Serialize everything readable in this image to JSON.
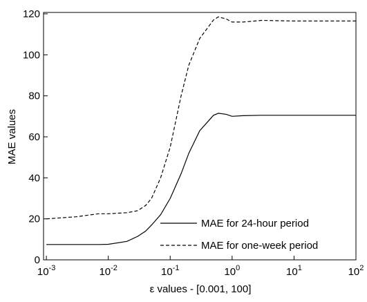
{
  "chart_data": {
    "type": "line",
    "xlabel": "ε values - [0.001, 100]",
    "ylabel": "MAE values",
    "xscale": "log",
    "x": [
      0.001,
      0.003,
      0.007,
      0.01,
      0.02,
      0.03,
      0.04,
      0.05,
      0.07,
      0.1,
      0.15,
      0.2,
      0.3,
      0.5,
      0.6,
      0.8,
      1,
      1.5,
      3,
      10,
      100
    ],
    "series": [
      {
        "name": "MAE for 24-hour period",
        "color": "#000000",
        "dash": "solid",
        "values": [
          7.5,
          7.5,
          7.5,
          7.6,
          9,
          11.5,
          14,
          17,
          22,
          30,
          42,
          52,
          63,
          70.5,
          71.5,
          71,
          70,
          70.3,
          70.5,
          70.5,
          70.5
        ]
      },
      {
        "name": "MAE for one-week period",
        "color": "#000000",
        "dash": "dashed",
        "values": [
          20,
          21,
          22.5,
          22.5,
          23,
          24,
          26.5,
          30,
          40,
          55,
          80,
          95,
          108,
          117,
          118.5,
          117.5,
          116,
          116,
          116.8,
          116.5,
          116.5
        ]
      }
    ],
    "xlim": [
      0.0009,
      100
    ],
    "ylim": [
      0,
      120
    ],
    "xticks": [
      {
        "value": 0.001,
        "label": "10",
        "exponent": "-3"
      },
      {
        "value": 0.01,
        "label": "10",
        "exponent": "-2"
      },
      {
        "value": 0.1,
        "label": "10",
        "exponent": "-1"
      },
      {
        "value": 1,
        "label": "10",
        "exponent": "0"
      },
      {
        "value": 10,
        "label": "10",
        "exponent": "1"
      },
      {
        "value": 100,
        "label": "10",
        "exponent": "2"
      }
    ],
    "yticks": [
      0,
      20,
      40,
      60,
      80,
      100,
      120
    ],
    "legend": "lower right"
  }
}
